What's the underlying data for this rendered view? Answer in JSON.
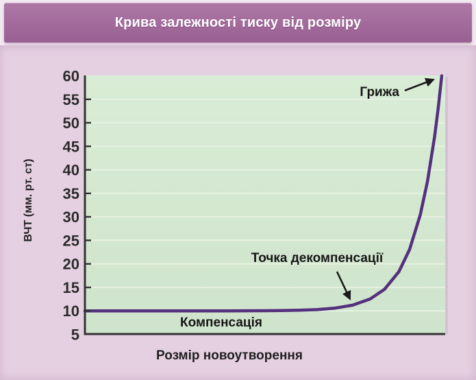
{
  "header": {
    "title": "Крива залежності тиску від розміру"
  },
  "colors": {
    "title_bar": "#a46d9d",
    "panel_background": "#e5d0e2",
    "plot_background": "#d3e7d0",
    "gridline": "#e6f2e1",
    "axis": "#333333",
    "curve": "#55307e",
    "annotation_arrow": "#1a1a1a",
    "title_text": "#ffffff"
  },
  "chart_data": {
    "type": "line",
    "title": "Крива залежності тиску від розміру",
    "xlabel": "Розмір новоутворення",
    "ylabel": "ВЧТ (мм. рт. ст)",
    "ylim": [
      5,
      60
    ],
    "yticks": [
      5,
      10,
      15,
      20,
      25,
      30,
      35,
      40,
      45,
      50,
      55,
      60
    ],
    "x_axis_ticks": "none (qualitative axis)",
    "grid": "horizontal light lines at each y tick",
    "legend": "none",
    "series": [
      {
        "name": "ВЧТ",
        "description": "flat at 10 mm Hg (compensation), exponential rise to 60 mm Hg (decompensation/herniation)",
        "points_frac_value": [
          [
            0.0,
            10.0
          ],
          [
            0.1,
            10.0
          ],
          [
            0.2,
            10.0
          ],
          [
            0.3,
            10.0
          ],
          [
            0.4,
            10.01
          ],
          [
            0.5,
            10.03
          ],
          [
            0.55,
            10.06
          ],
          [
            0.6,
            10.13
          ],
          [
            0.65,
            10.27
          ],
          [
            0.7,
            10.57
          ],
          [
            0.75,
            11.21
          ],
          [
            0.8,
            12.55
          ],
          [
            0.84,
            14.62
          ],
          [
            0.88,
            18.36
          ],
          [
            0.91,
            23.09
          ],
          [
            0.94,
            30.47
          ],
          [
            0.96,
            37.57
          ],
          [
            0.98,
            47.12
          ],
          [
            0.99,
            53.08
          ],
          [
            1.0,
            60.0
          ]
        ]
      }
    ],
    "annotations": [
      {
        "label": "Грижа",
        "target_value": 60,
        "arrow": "points up-right to top of curve"
      },
      {
        "label": "Точка декомпенсації",
        "target_value": 11,
        "arrow": "points down-right to bend of curve"
      },
      {
        "label": "Компенсація",
        "target_value": 10,
        "arrow": "none, label under flat segment"
      }
    ]
  }
}
